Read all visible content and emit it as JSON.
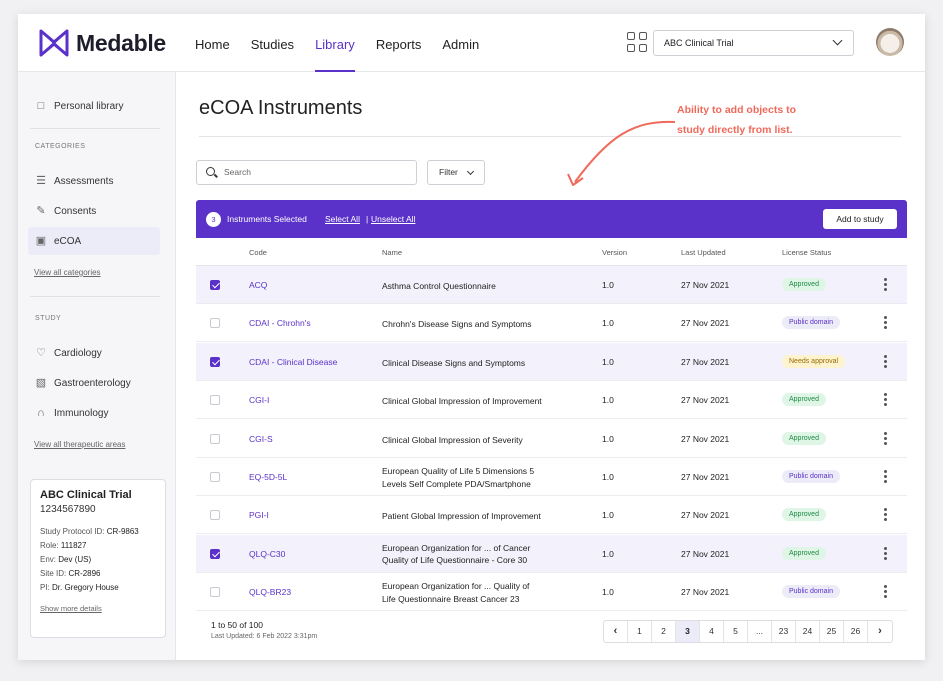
{
  "app": {
    "brand": "Medable"
  },
  "nav": [
    {
      "label": "Home"
    },
    {
      "label": "Studies"
    },
    {
      "label": "Library"
    },
    {
      "label": "Reports"
    },
    {
      "label": "Admin"
    }
  ],
  "nav_active": "Library",
  "header": {
    "trial_select": "ABC Clinical Trial"
  },
  "sidebar": {
    "personal_library": "Personal library",
    "categories_heading": "CATEGORIES",
    "categories": [
      {
        "label": "Assessments",
        "icon": "assessment-icon"
      },
      {
        "label": "Consents",
        "icon": "pen-icon"
      },
      {
        "label": "eCOA",
        "icon": "briefcase-icon"
      }
    ],
    "view_all_categories": "View all categories",
    "study_heading": "STUDY",
    "study_areas": [
      {
        "label": "Cardiology",
        "icon": "heart-icon"
      },
      {
        "label": "Gastroenterology",
        "icon": "stomach-icon"
      },
      {
        "label": "Immunology",
        "icon": "immune-icon"
      }
    ],
    "view_all_areas": "View all therapeutic areas",
    "trial_card": {
      "name": "ABC Clinical Trial",
      "number": "1234567890",
      "protocol_label": "Study Protocol ID:",
      "protocol_value": "CR-9863",
      "role_label": "Role:",
      "role_value": "111827",
      "env_label": "Env:",
      "env_value": "Dev (US)",
      "site_label": "Site ID:",
      "site_value": "CR-2896",
      "pi_label": "PI:",
      "pi_value": "Dr. Gregory House",
      "more": "Show more details"
    }
  },
  "main": {
    "title": "eCOA Instruments",
    "annotation_line1": "Ability to add objects to",
    "annotation_line2": "study directly from list.",
    "search_placeholder": "Search",
    "filter_label": "Filter"
  },
  "selection_bar": {
    "count": "3",
    "label": "Instruments Selected",
    "select_all": "Select All",
    "separator": "|",
    "unselect_all": "Unselect All",
    "add_button": "Add to study"
  },
  "table": {
    "columns": [
      "Code",
      "Name",
      "Version",
      "Last Updated",
      "License Status"
    ],
    "rows": [
      {
        "selected": true,
        "code": "ACQ",
        "name1": "Asthma Control Questionnaire",
        "name2": "",
        "version": "1.0",
        "updated": "27 Nov 2021",
        "status": "Approved"
      },
      {
        "selected": false,
        "code": "CDAI - Chrohn's",
        "name1": "Chrohn's Disease Signs and Symptoms",
        "name2": "",
        "version": "1.0",
        "updated": "27 Nov 2021",
        "status": "Public domain"
      },
      {
        "selected": true,
        "code": "CDAI - Clinical Disease",
        "name1": "Clinical Disease Signs and Symptoms",
        "name2": "",
        "version": "1.0",
        "updated": "27 Nov 2021",
        "status": "Needs approval"
      },
      {
        "selected": false,
        "code": "CGI-I",
        "name1": "Clinical Global Impression of Improvement",
        "name2": "",
        "version": "1.0",
        "updated": "27 Nov 2021",
        "status": "Approved"
      },
      {
        "selected": false,
        "code": "CGI-S",
        "name1": "Clinical Global Impression of Severity",
        "name2": "",
        "version": "1.0",
        "updated": "27 Nov 2021",
        "status": "Approved"
      },
      {
        "selected": false,
        "code": "EQ-5D-5L",
        "name1": "European Quality of Life 5 Dimensions 5",
        "name2": "Levels Self Complete PDA/Smartphone",
        "version": "1.0",
        "updated": "27 Nov 2021",
        "status": "Public domain"
      },
      {
        "selected": false,
        "code": "PGI-I",
        "name1": "Patient Global Impression of Improvement",
        "name2": "",
        "version": "1.0",
        "updated": "27 Nov 2021",
        "status": "Approved"
      },
      {
        "selected": true,
        "code": "QLQ-C30",
        "name1": "European Organization for ...  of Cancer",
        "name2": "Quality of Life Questionnaire - Core 30",
        "version": "1.0",
        "updated": "27 Nov 2021",
        "status": "Approved"
      },
      {
        "selected": false,
        "code": "QLQ-BR23",
        "name1": "European Organization for ... Quality of",
        "name2": "Life Questionnaire Breast Cancer 23",
        "version": "1.0",
        "updated": "27 Nov 2021",
        "status": "Public domain"
      }
    ],
    "status_colors": {
      "Approved": {
        "bg": "#dff5e6",
        "fg": "#1f8a45"
      },
      "Public domain": {
        "bg": "#ecebf8",
        "fg": "#5a31c9"
      },
      "Needs approval": {
        "bg": "#fdf3cf",
        "fg": "#9a6b00"
      }
    }
  },
  "footer": {
    "range": "1 to 50 of 100",
    "last_updated": "Last Updated: 6 Feb 2022 3:31pm",
    "pages": [
      "1",
      "2",
      "3",
      "4",
      "5",
      "...",
      "23",
      "24",
      "25",
      "26"
    ],
    "current_page": "3"
  },
  "colors": {
    "accent": "#5a31c9",
    "annotation": "#f0695a"
  }
}
